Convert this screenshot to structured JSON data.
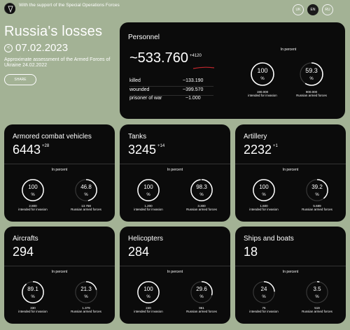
{
  "header": {
    "support_text": "With the support of the Special Operations Forces",
    "languages": [
      "UK",
      "EN",
      "RU"
    ],
    "active_language": "EN"
  },
  "hero": {
    "title": "Russia's losses",
    "date": "07.02.2023",
    "prev_arrow": "<",
    "assessment": "Approximate assessment of the Armed Forces of Ukraine 24.02.2022",
    "share_label": "SHARE"
  },
  "personnel": {
    "title": "Personnel",
    "value": "~533.760",
    "delta": "+4120",
    "in_percent_label": "In percent",
    "rows": [
      {
        "label": "killed",
        "value": "~133.190"
      },
      {
        "label": "wounded",
        "value": "~399.570"
      },
      {
        "label": "prisoner of war",
        "value": "~1.000"
      }
    ],
    "ring1": {
      "value": "100",
      "unit": "%",
      "number": "190.000",
      "caption": "intended for invasion",
      "fraction": 1.0
    },
    "ring2": {
      "value": "59.3",
      "unit": "%",
      "number": "900.000",
      "caption": "Russian armed forces",
      "fraction": 0.593
    }
  },
  "cards": [
    {
      "title": "Armored combat vehicles",
      "value": "6443",
      "delta": "+28",
      "in_percent_label": "In percent",
      "ring1": {
        "value": "100",
        "unit": "%",
        "number": "2.800",
        "caption": "intended for invasion",
        "fraction": 1.0
      },
      "ring2": {
        "value": "46.8",
        "unit": "%",
        "number": "13.758",
        "caption": "Russian armed forces",
        "fraction": 0.468
      }
    },
    {
      "title": "Tanks",
      "value": "3245",
      "delta": "+14",
      "in_percent_label": "In percent",
      "ring1": {
        "value": "100",
        "unit": "%",
        "number": "1.200",
        "caption": "intended for invasion",
        "fraction": 1.0
      },
      "ring2": {
        "value": "98.3",
        "unit": "%",
        "number": "3.300",
        "caption": "Russian armed forces",
        "fraction": 0.983
      }
    },
    {
      "title": "Artillery",
      "value": "2232",
      "delta": "+1",
      "in_percent_label": "In percent",
      "ring1": {
        "value": "100",
        "unit": "%",
        "number": "1.600",
        "caption": "intended for invasion",
        "fraction": 1.0
      },
      "ring2": {
        "value": "39.2",
        "unit": "%",
        "number": "5.689",
        "caption": "Russian armed forces",
        "fraction": 0.392
      }
    },
    {
      "title": "Aircrafts",
      "value": "294",
      "delta": "",
      "in_percent_label": "In percent",
      "ring1": {
        "value": "89.1",
        "unit": "%",
        "number": "330",
        "caption": "intended for invasion",
        "fraction": 0.891
      },
      "ring2": {
        "value": "21.3",
        "unit": "%",
        "number": "1.379",
        "caption": "Russian armed forces",
        "fraction": 0.213
      }
    },
    {
      "title": "Helicopters",
      "value": "284",
      "delta": "",
      "in_percent_label": "In percent",
      "ring1": {
        "value": "100",
        "unit": "%",
        "number": "240",
        "caption": "intended for invasion",
        "fraction": 1.0
      },
      "ring2": {
        "value": "29.6",
        "unit": "%",
        "number": "961",
        "caption": "Russian armed forces",
        "fraction": 0.296
      }
    },
    {
      "title": "Ships and boats",
      "value": "18",
      "delta": "",
      "in_percent_label": "In percent",
      "ring1": {
        "value": "24",
        "unit": "%",
        "number": "75",
        "caption": "intended for invasion",
        "fraction": 0.24
      },
      "ring2": {
        "value": "3.5",
        "unit": "%",
        "number": "519",
        "caption": "Russian armed forces",
        "fraction": 0.035
      }
    }
  ],
  "colors": {
    "background": "#a3b295",
    "card": "#0b0b0b",
    "ring_track": "#3a3a3a",
    "ring_fill": "#ffffff",
    "underline_accent": "#c0272d"
  }
}
